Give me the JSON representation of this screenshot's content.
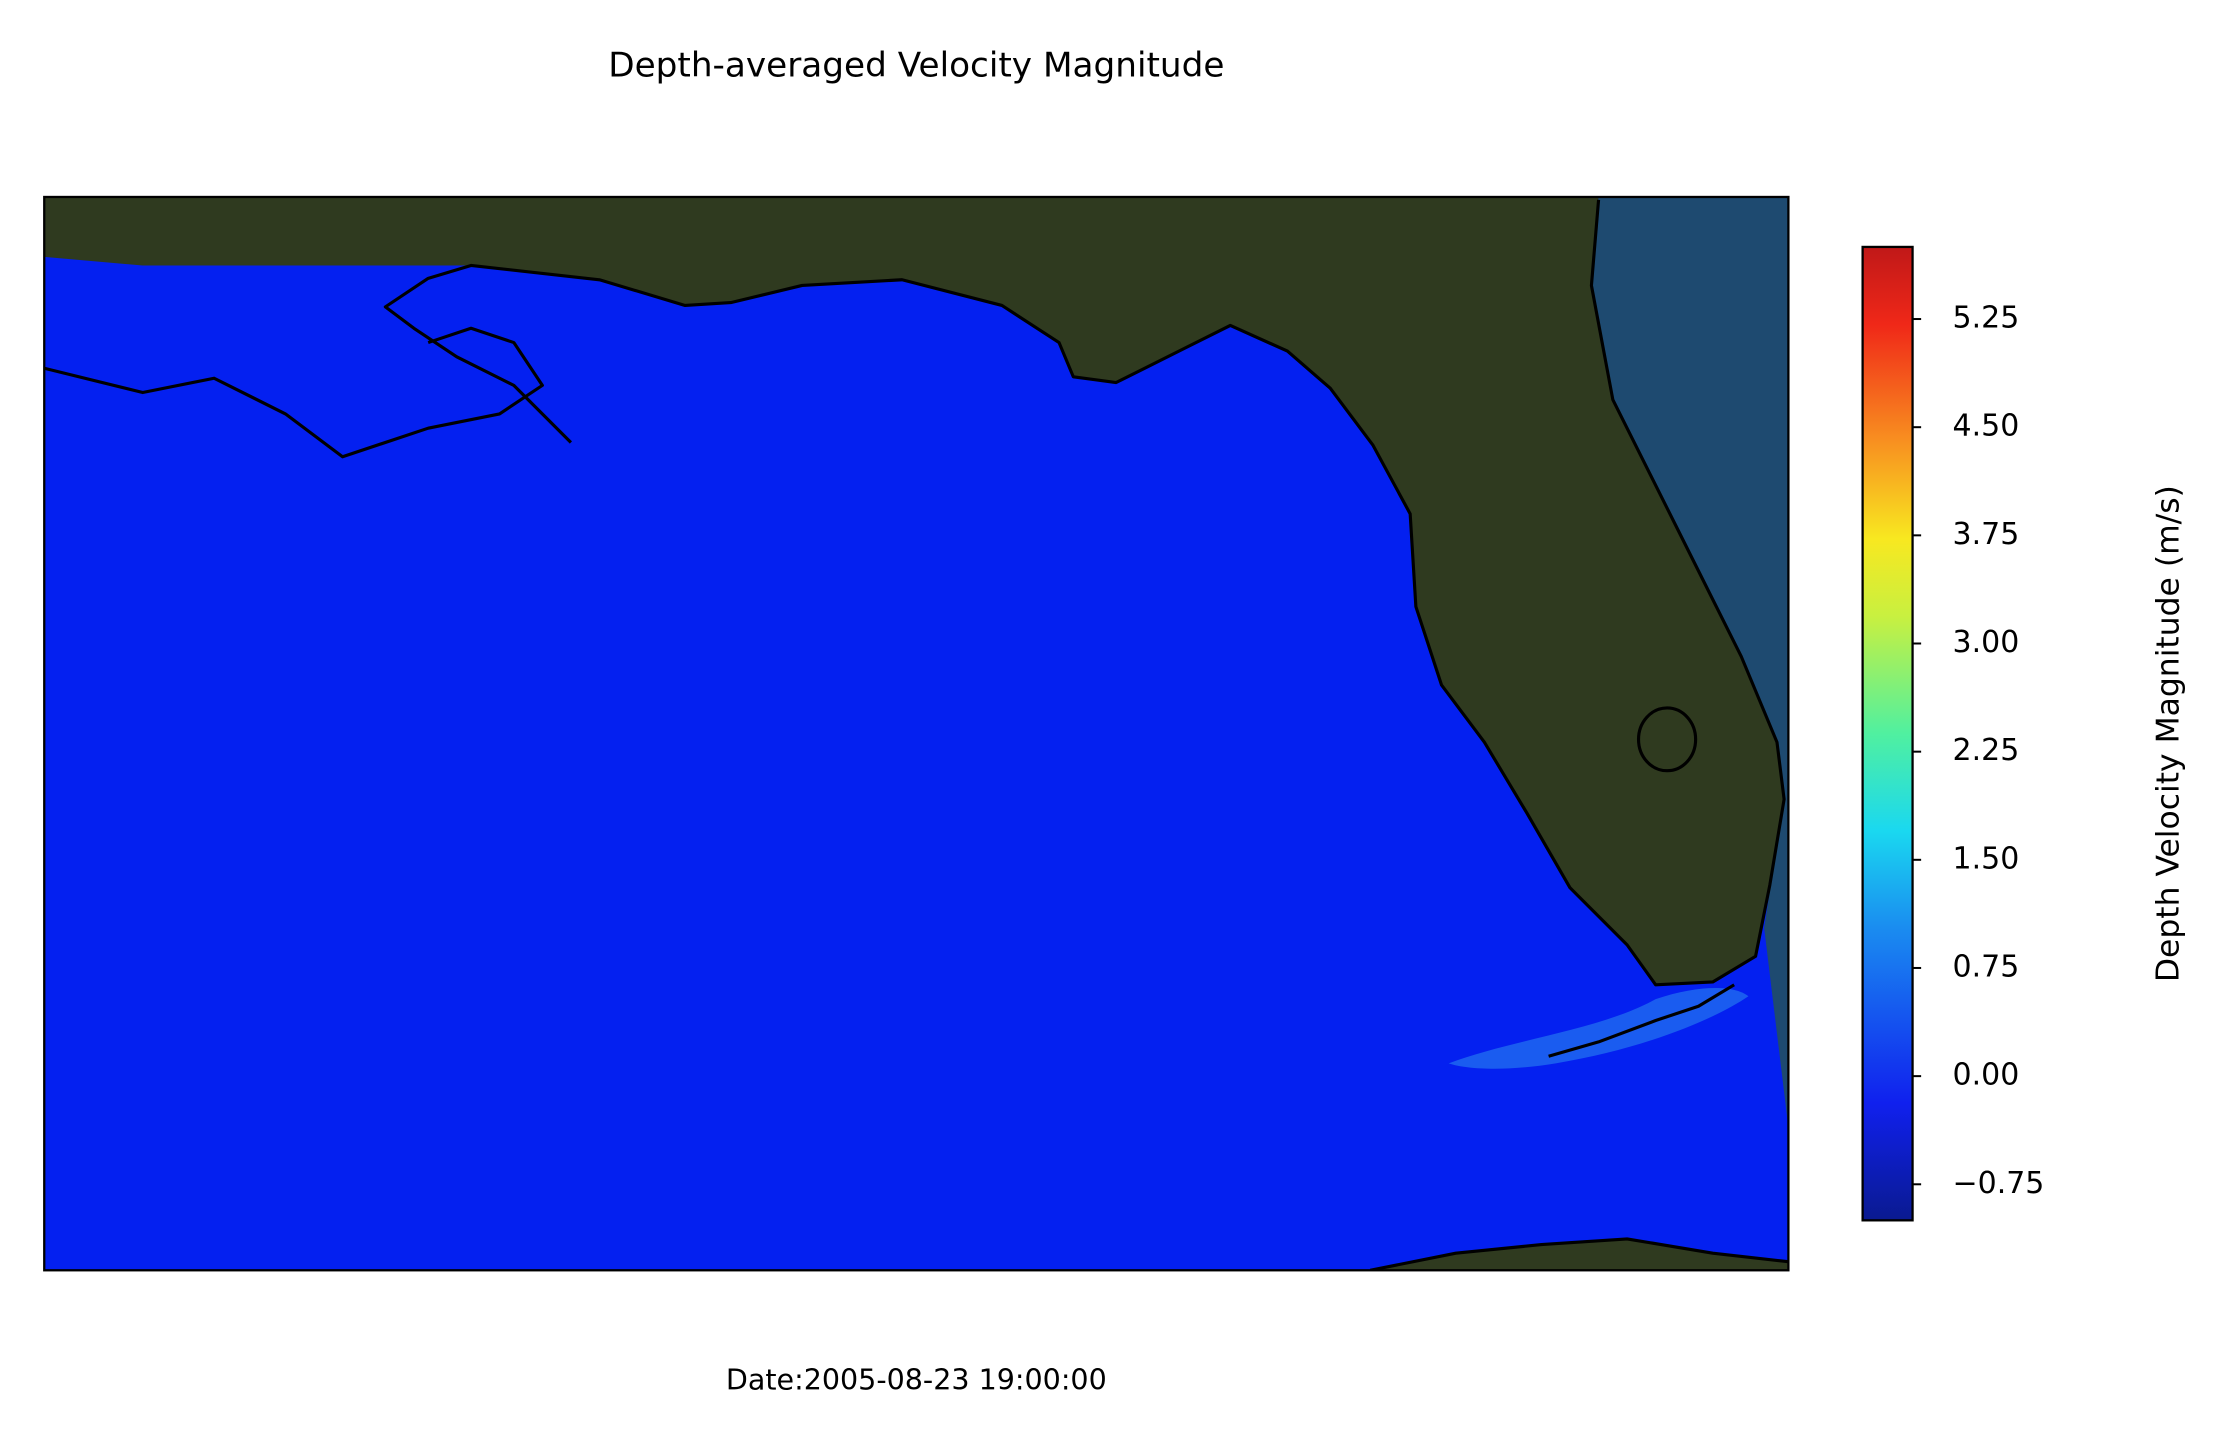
{
  "chart_data": {
    "type": "contour-map",
    "title": "Depth-averaged Velocity Magnitude",
    "annotation": "Date:2005-08-23 19:00:00",
    "colorbar": {
      "label": "Depth Velocity Magnitude (m/s)",
      "cmap": "jet",
      "lim": [
        -1.0,
        5.75
      ],
      "ticks": [
        {
          "value": -0.75,
          "label": "−0.75"
        },
        {
          "value": 0,
          "label": "0.00"
        },
        {
          "value": 0.75,
          "label": "0.75"
        },
        {
          "value": 1.5,
          "label": "1.50"
        },
        {
          "value": 2.25,
          "label": "2.25"
        },
        {
          "value": 3,
          "label": "3.00"
        },
        {
          "value": 3.75,
          "label": "3.75"
        },
        {
          "value": 4.5,
          "label": "4.50"
        },
        {
          "value": 5.25,
          "label": "5.25"
        }
      ]
    }
  }
}
